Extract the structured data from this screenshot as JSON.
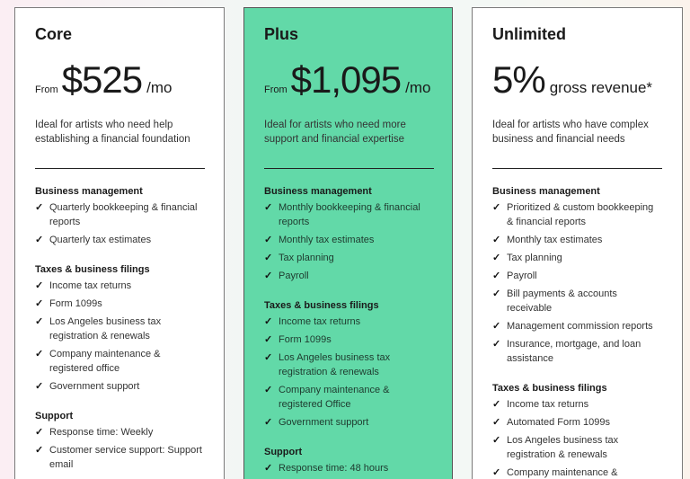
{
  "plans": [
    {
      "name": "Core",
      "price_prefix": "From",
      "price": "$525",
      "price_suffix": "/mo",
      "description": "Ideal for artists who need help establishing a financial foundation",
      "sections": [
        {
          "heading": "Business management",
          "items": [
            "Quarterly bookkeeping & financial reports",
            "Quarterly tax estimates"
          ]
        },
        {
          "heading": "Taxes & business filings",
          "items": [
            "Income tax returns",
            "Form 1099s",
            "Los Angeles business tax registration & renewals",
            "Company maintenance & registered office",
            "Government support"
          ]
        },
        {
          "heading": "Support",
          "items": [
            "Response time: Weekly",
            "Customer service support: Support email"
          ]
        }
      ]
    },
    {
      "name": "Plus",
      "highlighted": true,
      "color": "#62d9a8",
      "price_prefix": "From",
      "price": "$1,095",
      "price_suffix": "/mo",
      "description": "Ideal for artists who need more support and financial expertise",
      "sections": [
        {
          "heading": "Business management",
          "items": [
            "Monthly bookkeeping & financial reports",
            "Monthly tax estimates",
            "Tax planning",
            "Payroll"
          ]
        },
        {
          "heading": "Taxes & business filings",
          "items": [
            "Income tax returns",
            "Form 1099s",
            "Los Angeles business tax registration & renewals",
            "Company maintenance & registered Office",
            "Government support"
          ]
        },
        {
          "heading": "Support",
          "items": [
            "Response time: 48 hours"
          ]
        }
      ]
    },
    {
      "name": "Unlimited",
      "price_prefix": "",
      "price": "5%",
      "price_suffix": "gross revenue*",
      "description": "Ideal for artists who have complex business and financial needs",
      "sections": [
        {
          "heading": "Business management",
          "items": [
            "Prioritized & custom bookkeeping & financial reports",
            "Monthly tax estimates",
            "Tax planning",
            "Payroll",
            "Bill payments & accounts receivable",
            "Management commission reports",
            "Insurance, mortgage, and loan assistance"
          ]
        },
        {
          "heading": "Taxes & business filings",
          "items": [
            "Income tax returns",
            "Automated Form 1099s",
            "Los Angeles business tax registration & renewals",
            "Company maintenance & registered office"
          ]
        }
      ]
    }
  ],
  "icons": {
    "check": "checkmark-icon"
  }
}
